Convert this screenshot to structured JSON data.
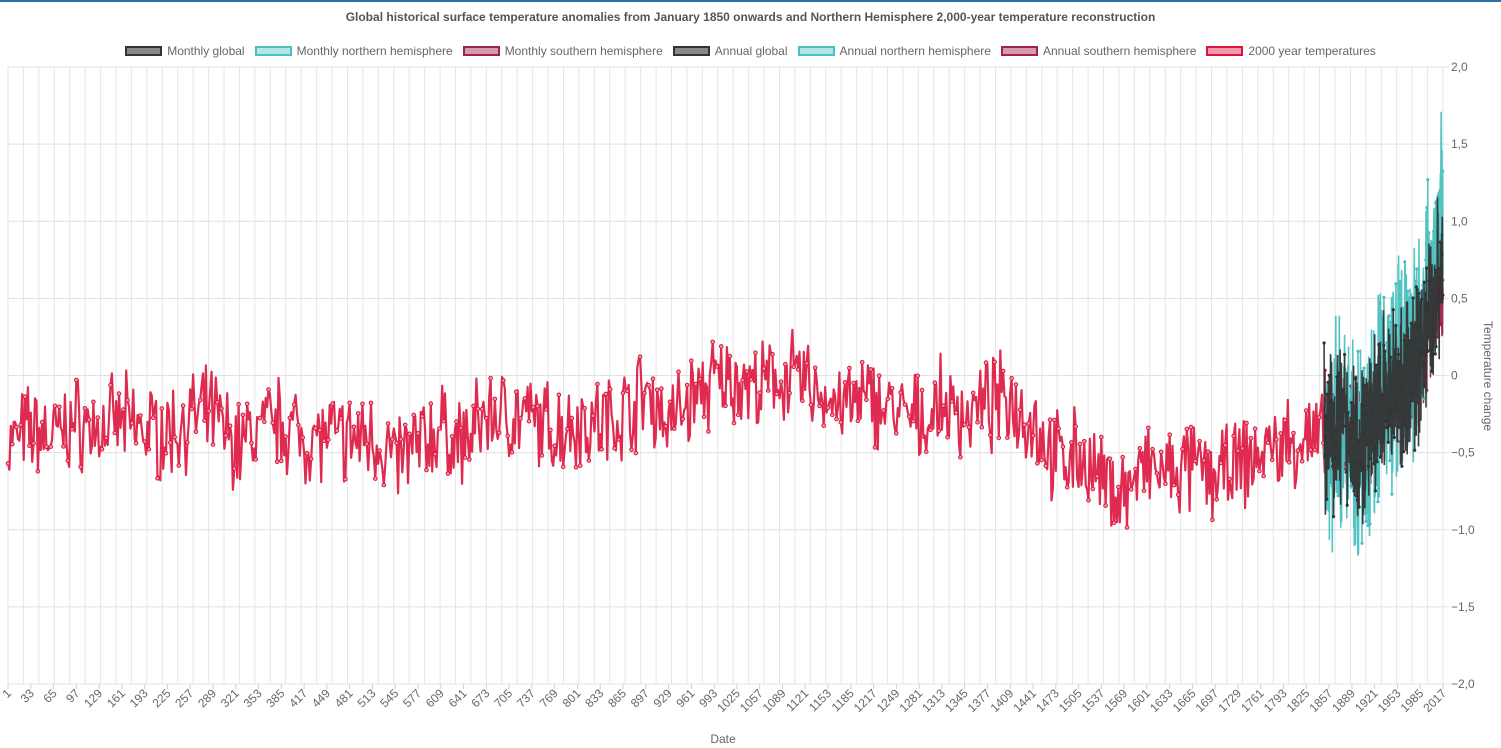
{
  "chart_data": {
    "type": "line",
    "title": "Global historical surface temperature anomalies from January 1850 onwards and Northern Hemisphere 2,000-year temperature reconstruction",
    "xlabel": "Date",
    "ylabel": "Temperature change",
    "ylim": [
      -2.0,
      2.0
    ],
    "y_ticks": [
      "2,0",
      "1,5",
      "1,0",
      "0,5",
      "0",
      "−0,5",
      "−1,0",
      "−1,5",
      "−2,0"
    ],
    "x_ticks": [
      "1",
      "33",
      "65",
      "97",
      "129",
      "161",
      "193",
      "225",
      "257",
      "289",
      "321",
      "353",
      "385",
      "417",
      "449",
      "481",
      "513",
      "545",
      "577",
      "609",
      "641",
      "673",
      "705",
      "737",
      "769",
      "801",
      "833",
      "865",
      "897",
      "929",
      "961",
      "993",
      "1025",
      "1057",
      "1089",
      "1121",
      "1153",
      "1185",
      "1217",
      "1249",
      "1281",
      "1313",
      "1345",
      "1377",
      "1409",
      "1441",
      "1473",
      "1505",
      "1537",
      "1569",
      "1601",
      "1633",
      "1665",
      "1697",
      "1729",
      "1761",
      "1793",
      "1825",
      "1857",
      "1889",
      "1921",
      "1953",
      "1985",
      "2017"
    ],
    "legend_position": "top",
    "grid": true,
    "series": [
      {
        "name": "Monthly global",
        "color": "#333333",
        "fill": "#888888"
      },
      {
        "name": "Monthly northern hemisphere",
        "color": "#4bc0c0",
        "fill": "#b3e6e6"
      },
      {
        "name": "Monthly southern hemisphere",
        "color": "#a0224b",
        "fill": "#d59aad"
      },
      {
        "name": "Annual global",
        "color": "#333333",
        "fill": "#888888"
      },
      {
        "name": "Annual northern hemisphere",
        "color": "#4bc0c0",
        "fill": "#b3e6e6"
      },
      {
        "name": "Annual southern hemisphere",
        "color": "#a0224b",
        "fill": "#d59aad"
      },
      {
        "name": "2000 year temperatures",
        "color": "#dc143c",
        "fill": "#f29aab"
      }
    ],
    "reconstruction_2000yr": {
      "x": [
        1,
        33,
        65,
        97,
        129,
        161,
        193,
        225,
        257,
        289,
        321,
        353,
        385,
        417,
        449,
        481,
        513,
        545,
        577,
        609,
        641,
        673,
        705,
        737,
        769,
        801,
        833,
        865,
        897,
        929,
        961,
        993,
        1025,
        1057,
        1089,
        1121,
        1153,
        1185,
        1217,
        1249,
        1281,
        1313,
        1345,
        1377,
        1409,
        1441,
        1473,
        1505,
        1537,
        1569,
        1601,
        1633,
        1665,
        1697,
        1729,
        1761,
        1793,
        1825,
        1857
      ],
      "y": [
        -0.45,
        -0.35,
        -0.4,
        -0.3,
        -0.35,
        -0.3,
        -0.35,
        -0.38,
        -0.28,
        -0.25,
        -0.45,
        -0.35,
        -0.3,
        -0.4,
        -0.4,
        -0.42,
        -0.38,
        -0.55,
        -0.45,
        -0.35,
        -0.45,
        -0.25,
        -0.25,
        -0.3,
        -0.35,
        -0.3,
        -0.3,
        -0.25,
        -0.1,
        -0.3,
        -0.15,
        -0.05,
        -0.02,
        -0.1,
        0.0,
        -0.05,
        -0.15,
        -0.2,
        -0.15,
        -0.25,
        -0.3,
        -0.2,
        -0.25,
        -0.2,
        -0.15,
        -0.3,
        -0.55,
        -0.5,
        -0.7,
        -0.75,
        -0.6,
        -0.65,
        -0.6,
        -0.65,
        -0.6,
        -0.5,
        -0.45,
        -0.4,
        -0.45
      ]
    },
    "instrumental_annual_global": {
      "x": [
        1857,
        1873,
        1889,
        1905,
        1921,
        1937,
        1953,
        1969,
        1985,
        2001,
        2017
      ],
      "y": [
        -0.35,
        -0.3,
        -0.4,
        -0.45,
        -0.3,
        -0.1,
        -0.1,
        -0.05,
        0.15,
        0.45,
        0.8
      ]
    },
    "instrumental_northern": {
      "x": [
        1857,
        1873,
        1889,
        1905,
        1921,
        1937,
        1953,
        1969,
        1985,
        2001,
        2017
      ],
      "y": [
        -0.4,
        -0.35,
        -0.45,
        -0.45,
        -0.25,
        0.0,
        0.0,
        0.05,
        0.3,
        0.7,
        1.15
      ]
    },
    "instrumental_southern": {
      "x": [
        1857,
        1873,
        1889,
        1905,
        1921,
        1937,
        1953,
        1969,
        1985,
        2001,
        2017
      ],
      "y": [
        -0.35,
        -0.3,
        -0.35,
        -0.4,
        -0.3,
        -0.2,
        -0.1,
        0.0,
        0.15,
        0.35,
        0.55
      ]
    }
  }
}
